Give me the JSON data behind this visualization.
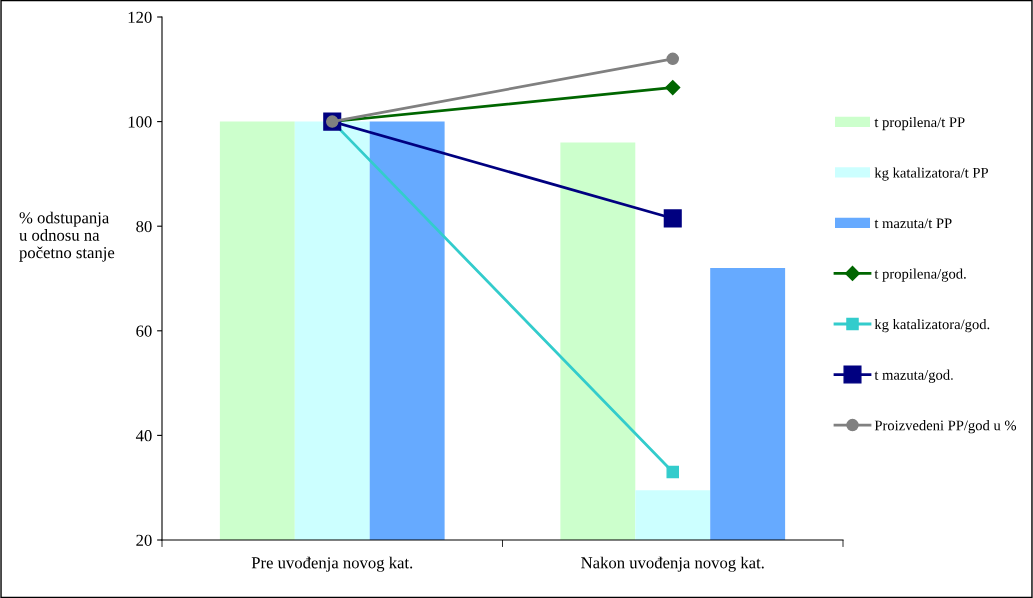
{
  "chart_data": {
    "type": "bar",
    "ylabel": "% odstupanja\nu odnosu na\npočetno stanje",
    "categories": [
      "Pre uvođenja novog kat.",
      "Nakon uvođenja novog kat."
    ],
    "series": [
      {
        "name": "t propilena/t PP",
        "color": "#ccffcc",
        "values": [
          100,
          96
        ]
      },
      {
        "name": "kg katalizatora/t PP",
        "color": "#ccffff",
        "values": [
          100,
          29.5
        ]
      },
      {
        "name": "t mazuta/t PP",
        "color": "#66aaff",
        "values": [
          100,
          72
        ]
      },
      {
        "name": "t propilena/god.",
        "type": "line",
        "color": "#006600",
        "marker": "diamond",
        "values": [
          100,
          106.5
        ]
      },
      {
        "name": "kg katalizatora/god.",
        "type": "line",
        "color": "#33cccc",
        "marker": "square",
        "values": [
          100,
          33
        ]
      },
      {
        "name": "t mazuta/god.",
        "type": "line",
        "color": "#000080",
        "marker": "square",
        "values": [
          100,
          81.5
        ]
      },
      {
        "name": "Proizvedeni PP/god u %",
        "type": "line",
        "color": "#808080",
        "marker": "circle",
        "values": [
          100,
          112
        ]
      }
    ],
    "ylim": [
      20,
      120
    ],
    "yticks": [
      20,
      40,
      60,
      80,
      100,
      120
    ],
    "grid": false,
    "legend": "right"
  }
}
